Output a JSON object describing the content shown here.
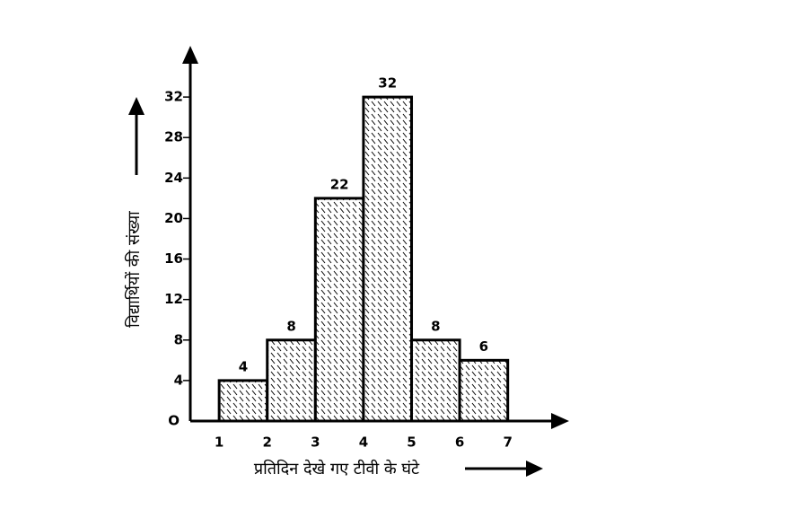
{
  "chart_data": {
    "type": "histogram",
    "xlabel": "प्रतिदिन देखे गए टीवी के घंटे",
    "ylabel": "विद्यार्थियों की संख्या",
    "bins": [
      1,
      2,
      3,
      4,
      5,
      6,
      7
    ],
    "values": [
      4,
      8,
      22,
      32,
      8,
      6
    ],
    "color": "#000000",
    "xlim": [
      0.4,
      8.2
    ],
    "xticks": [
      1,
      2,
      3,
      4,
      5,
      6,
      7
    ],
    "ylim": [
      0,
      36
    ],
    "yticks": [
      {
        "value": 0,
        "label": "O"
      },
      4,
      8,
      12,
      16,
      20,
      24,
      28,
      32
    ],
    "grid": false
  }
}
